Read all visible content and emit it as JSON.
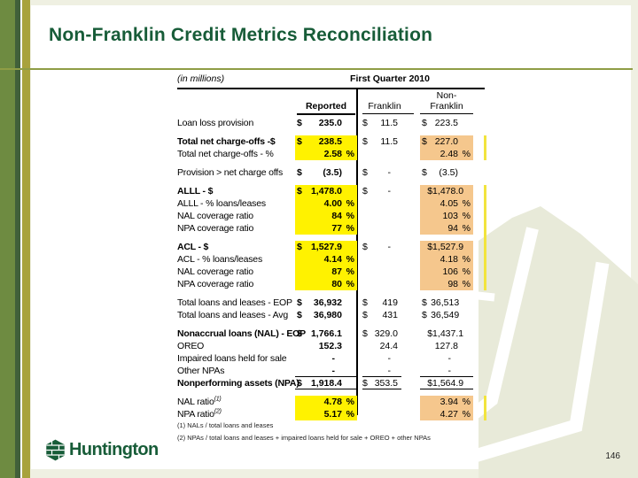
{
  "slide": {
    "title": "Non-Franklin Credit Metrics Reconciliation",
    "page_number": "146",
    "logo_text": "Huntington"
  },
  "table": {
    "units_label": "(in millions)",
    "period_header": "First Quarter 2010",
    "col_reported": "Reported",
    "col_franklin": "Franklin",
    "col_nonfranklin_line1": "Non-",
    "col_nonfranklin_line2": "Franklin",
    "rows": [
      {
        "label": "Loan loss provision",
        "r": [
          "$",
          "235.0",
          ""
        ],
        "f": [
          "$",
          "11.5"
        ],
        "n": [
          "$",
          "223.5",
          ""
        ]
      },
      {
        "label": "Total net charge-offs -$",
        "bold": true,
        "gap": true,
        "hl": true,
        "r": [
          "$",
          "238.5",
          ""
        ],
        "f": [
          "$",
          "11.5"
        ],
        "n": [
          "$",
          "227.0",
          ""
        ]
      },
      {
        "label": "Total net charge-offs - %",
        "hl": true,
        "r": [
          "",
          "2.58",
          "%"
        ],
        "f": [
          "",
          ""
        ],
        "n": [
          "",
          "2.48",
          "%"
        ]
      },
      {
        "label": "Provision > net charge offs",
        "gap": true,
        "r": [
          "$",
          "(3.5)",
          ""
        ],
        "f": [
          "$",
          "-"
        ],
        "n": [
          "$",
          "(3.5)",
          ""
        ]
      },
      {
        "label": "ALLL - $",
        "bold": true,
        "gap": true,
        "hl": true,
        "r": [
          "$",
          "1,478.0",
          ""
        ],
        "f": [
          "$",
          "-"
        ],
        "n": [
          "",
          "$1,478.0",
          ""
        ]
      },
      {
        "label": "ALLL - % loans/leases",
        "hl": true,
        "r": [
          "",
          "4.00",
          "%"
        ],
        "f": [
          "",
          ""
        ],
        "n": [
          "",
          "4.05",
          "%"
        ]
      },
      {
        "label": "NAL coverage ratio",
        "hl": true,
        "r": [
          "",
          "84",
          "%"
        ],
        "f": [
          "",
          ""
        ],
        "n": [
          "",
          "103",
          "%"
        ]
      },
      {
        "label": "NPA coverage ratio",
        "hl": true,
        "r": [
          "",
          "77",
          "%"
        ],
        "f": [
          "",
          ""
        ],
        "n": [
          "",
          "94",
          "%"
        ]
      },
      {
        "label": "ACL - $",
        "bold": true,
        "gap": true,
        "hl": true,
        "r": [
          "$",
          "1,527.9",
          ""
        ],
        "f": [
          "$",
          "-"
        ],
        "n": [
          "",
          "$1,527.9",
          ""
        ]
      },
      {
        "label": "ACL - % loans/leases",
        "hl": true,
        "r": [
          "",
          "4.14",
          "%"
        ],
        "f": [
          "",
          ""
        ],
        "n": [
          "",
          "4.18",
          "%"
        ]
      },
      {
        "label": "NAL coverage ratio",
        "hl": true,
        "r": [
          "",
          "87",
          "%"
        ],
        "f": [
          "",
          ""
        ],
        "n": [
          "",
          "106",
          "%"
        ]
      },
      {
        "label": "NPA coverage ratio",
        "hl": true,
        "r": [
          "",
          "80",
          "%"
        ],
        "f": [
          "",
          ""
        ],
        "n": [
          "",
          "98",
          "%"
        ]
      },
      {
        "label": "Total loans and leases - EOP",
        "gap": true,
        "r": [
          "$",
          "36,932",
          ""
        ],
        "f": [
          "$",
          "419"
        ],
        "n": [
          "$",
          "36,513",
          ""
        ]
      },
      {
        "label": "Total loans and leases - Avg",
        "r": [
          "$",
          "36,980",
          ""
        ],
        "f": [
          "$",
          "431"
        ],
        "n": [
          "$",
          "36,549",
          ""
        ]
      },
      {
        "label": "Nonaccrual loans (NAL) - EOP",
        "bold": true,
        "gap": true,
        "r": [
          "$",
          "1,766.1",
          ""
        ],
        "f": [
          "$",
          "329.0"
        ],
        "n": [
          "",
          "$1,437.1",
          ""
        ]
      },
      {
        "label": "OREO",
        "r": [
          "",
          "152.3",
          ""
        ],
        "f": [
          "",
          "24.4"
        ],
        "n": [
          "",
          "127.8",
          ""
        ]
      },
      {
        "label": "Impaired loans held for sale",
        "r": [
          "",
          "-",
          ""
        ],
        "f": [
          "",
          "-"
        ],
        "n": [
          "",
          "-",
          ""
        ]
      },
      {
        "label": "Other NPAs",
        "ul": true,
        "r": [
          "",
          "-",
          ""
        ],
        "f": [
          "",
          "-"
        ],
        "n": [
          "",
          "-",
          ""
        ]
      },
      {
        "label": "Nonperforming assets (NPA)",
        "bold": true,
        "ul": true,
        "r": [
          "$",
          "1,918.4",
          ""
        ],
        "f": [
          "$",
          "353.5"
        ],
        "n": [
          "",
          "$1,564.9",
          ""
        ]
      },
      {
        "label": "NAL ratio",
        "sup": "(1)",
        "gap": true,
        "hl": true,
        "r": [
          "",
          "4.78",
          "%"
        ],
        "f": [
          "",
          ""
        ],
        "n": [
          "",
          "3.94",
          "%"
        ]
      },
      {
        "label": "NPA ratio",
        "sup": "(2)",
        "hl": true,
        "r": [
          "",
          "5.17",
          "%"
        ],
        "f": [
          "",
          ""
        ],
        "n": [
          "",
          "4.27",
          "%"
        ]
      }
    ],
    "footnotes": [
      "(1) NALs / total loans and leases",
      "(2) NPAs / total loans and leases + impaired loans held for sale + OREO + other NPAs"
    ]
  },
  "icons": {
    "logo": "huntington-honeycomb-icon",
    "watermark": "huntington-hexagon-watermark"
  },
  "colors": {
    "brand-green": "#175c38",
    "highlight-yellow": "#fff200",
    "highlight-orange": "#f5c78d",
    "edge-yellow": "#f2e43e",
    "stripe-olive": "#6e8b41",
    "stripe-dark": "#41603a",
    "stripe-gold": "#a8a23c",
    "rule-olive": "#8f9d45",
    "watermark-sage": "#e8ead9",
    "page-bg": "#eff0e2"
  }
}
